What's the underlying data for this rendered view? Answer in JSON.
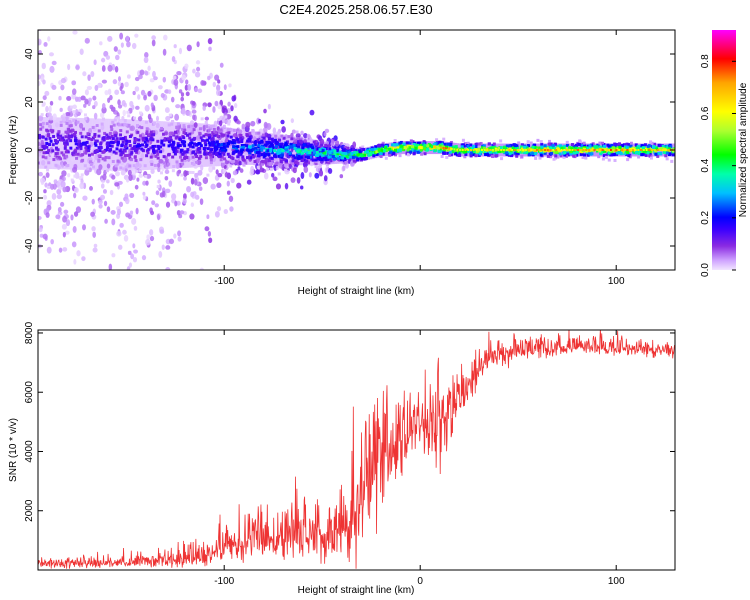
{
  "title": "C2E4.2025.258.06.57.E30",
  "chart_data": [
    {
      "type": "heatmap",
      "title": "C2E4.2025.258.06.57.E30",
      "xlabel": "Height of straight line (km)",
      "ylabel": "Frequency (Hz)",
      "xlim": [
        -195,
        130
      ],
      "ylim": [
        -50,
        50
      ],
      "xticks": [
        -100,
        0,
        100
      ],
      "xtick_labels": [
        "-100",
        "",
        "100"
      ],
      "yticks": [
        -40,
        -20,
        0,
        20,
        40
      ],
      "ytick_labels": [
        "-40",
        "-20",
        "0",
        "20",
        "40"
      ],
      "colorbar": {
        "label": "Normalized spectral amplitude",
        "range": [
          0,
          0.92
        ],
        "ticks": [
          0.0,
          0.2,
          0.4,
          0.6,
          0.8
        ],
        "tick_labels": [
          "0.0",
          "0.2",
          "0.4",
          "0.6",
          "0.8"
        ],
        "colormap": [
          "#f2e6ff",
          "#cfa3ff",
          "#8a2be2",
          "#3a00ff",
          "#0000ff",
          "#00bfff",
          "#00ffaa",
          "#00ff00",
          "#adff2f",
          "#ffff00",
          "#ffa500",
          "#ff0000",
          "#ff00ff"
        ]
      },
      "ridge": {
        "x": [
          -195,
          -150,
          -110,
          -90,
          -70,
          -55,
          -40,
          -30,
          -20,
          -10,
          0,
          10,
          20,
          40,
          60,
          80,
          100,
          130
        ],
        "center_hz": [
          3,
          2,
          2,
          1,
          0,
          -1,
          -2,
          -2,
          0,
          1,
          1,
          1,
          0,
          0,
          0,
          0,
          0,
          0
        ],
        "amplitude": [
          0.25,
          0.25,
          0.3,
          0.4,
          0.45,
          0.5,
          0.55,
          0.6,
          0.65,
          0.75,
          0.75,
          0.75,
          0.7,
          0.7,
          0.75,
          0.75,
          0.75,
          0.7
        ],
        "spread_hz": [
          12,
          12,
          10,
          8,
          7,
          6,
          4,
          3,
          3,
          3,
          3,
          3,
          3,
          3,
          3,
          3,
          3,
          3
        ],
        "scatter_hz": [
          50,
          50,
          45,
          12,
          10,
          8,
          6,
          3,
          2,
          2,
          2,
          2,
          2,
          2,
          2,
          2,
          2,
          2
        ]
      }
    },
    {
      "type": "line",
      "xlabel": "Height of straight line (km)",
      "ylabel": "SNR (10 * v/v)",
      "xlim": [
        -195,
        130
      ],
      "ylim": [
        0,
        8100
      ],
      "xticks": [
        -100,
        0,
        100
      ],
      "xtick_labels": [
        "-100",
        "0",
        "100"
      ],
      "yticks": [
        2000,
        4000,
        6000,
        8000
      ],
      "ytick_labels": [
        "2000",
        "4000",
        "6000",
        "8000"
      ],
      "color": "#ee3333",
      "envelope": {
        "x": [
          -195,
          -150,
          -110,
          -100,
          -80,
          -60,
          -40,
          -30,
          -20,
          -10,
          0,
          10,
          20,
          30,
          40,
          60,
          80,
          100,
          130
        ],
        "mean": [
          200,
          250,
          400,
          800,
          1000,
          1100,
          1400,
          2400,
          3800,
          4300,
          4900,
          4800,
          5800,
          6800,
          7300,
          7450,
          7550,
          7500,
          7400
        ],
        "noise": [
          120,
          150,
          250,
          500,
          600,
          650,
          800,
          1500,
          1800,
          900,
          700,
          1000,
          600,
          400,
          300,
          250,
          250,
          200,
          180
        ]
      }
    }
  ]
}
